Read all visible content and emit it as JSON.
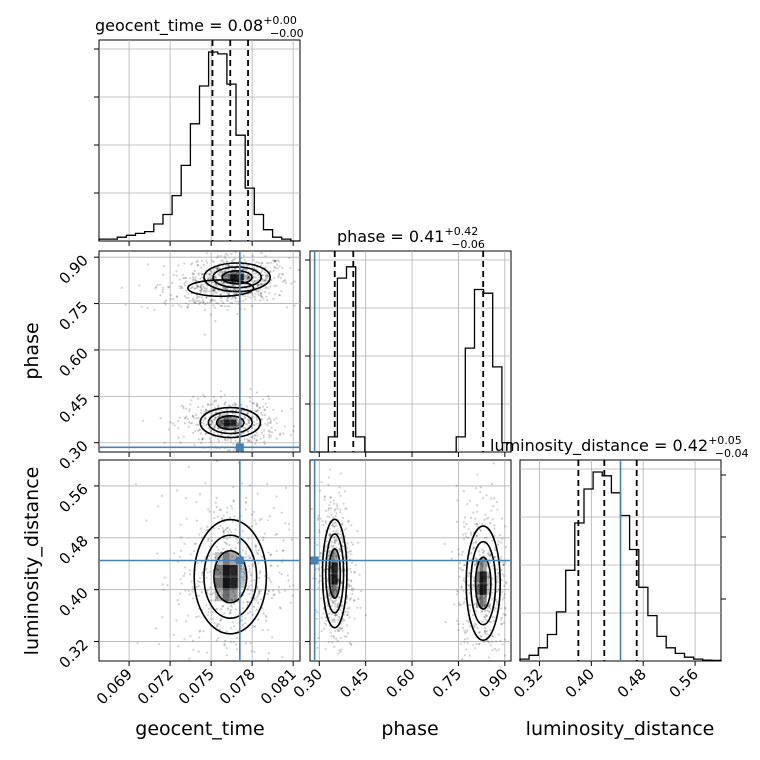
{
  "chart_data": {
    "type": "corner",
    "parameters": [
      "geocent_time",
      "phase",
      "luminosity_distance"
    ],
    "axis_labels": {
      "geocent_time": "geocent_time",
      "phase": "phase",
      "luminosity_distance": "luminosity_distance"
    },
    "ranges": {
      "geocent_time": [
        0.0668,
        0.0815
      ],
      "phase": [
        0.27,
        0.92
      ],
      "luminosity_distance": [
        0.29,
        0.6
      ]
    },
    "ticks": {
      "geocent_time": [
        "0.069",
        "0.072",
        "0.075",
        "0.078",
        "0.081"
      ],
      "phase": [
        "0.30",
        "0.45",
        "0.60",
        "0.75",
        "0.90"
      ],
      "luminosity_distance": [
        "0.32",
        "0.40",
        "0.48",
        "0.56"
      ]
    },
    "titles": {
      "geocent_time": {
        "prefix": "geocent_time = 0.08",
        "plus": "+0.00",
        "minus": "−0.00"
      },
      "phase": {
        "prefix": "phase = 0.41",
        "plus": "+0.42",
        "minus": "−0.06"
      },
      "luminosity_distance": {
        "prefix": "luminosity_distance = 0.42",
        "plus": "+0.05",
        "minus": "−0.04"
      }
    },
    "truths": {
      "geocent_time": 0.0771,
      "phase": 0.285,
      "luminosity_distance": 0.445
    },
    "quantiles": {
      "geocent_time": [
        0.0751,
        0.0764,
        0.0777
      ],
      "phase": [
        0.35,
        0.41,
        0.83
      ],
      "luminosity_distance": [
        0.38,
        0.42,
        0.47
      ]
    },
    "histograms": {
      "geocent_time": {
        "edges_start": 0.0668,
        "edges_end": 0.0815,
        "counts": [
          0.01,
          0.01,
          0.02,
          0.03,
          0.04,
          0.05,
          0.09,
          0.14,
          0.24,
          0.4,
          0.62,
          0.82,
          1.0,
          0.99,
          0.83,
          0.56,
          0.28,
          0.14,
          0.06,
          0.02,
          0.01,
          0.0
        ]
      },
      "phase": {
        "edges_start": 0.27,
        "edges_end": 0.92,
        "counts": [
          0.0,
          0.0,
          0.08,
          0.92,
          0.98,
          0.08,
          0.0,
          0.0,
          0.0,
          0.0,
          0.0,
          0.0,
          0.0,
          0.0,
          0.0,
          0.0,
          0.08,
          0.55,
          0.86,
          0.84,
          0.45,
          0.05
        ]
      },
      "luminosity_distance": {
        "edges_start": 0.29,
        "edges_end": 0.6,
        "counts": [
          0.01,
          0.03,
          0.07,
          0.14,
          0.26,
          0.48,
          0.73,
          0.91,
          1.0,
          0.98,
          0.89,
          0.77,
          0.59,
          0.39,
          0.24,
          0.13,
          0.07,
          0.04,
          0.02,
          0.01,
          0.005,
          0.003
        ]
      }
    },
    "blobs": {
      "geocent_time|phase": [
        {
          "cx": 0.0769,
          "cy": 0.835,
          "sx": 0.0011,
          "sy": 0.021,
          "w": 1.0
        },
        {
          "cx": 0.0757,
          "cy": 0.8,
          "sx": 0.0012,
          "sy": 0.022,
          "w": 0.35
        },
        {
          "cx": 0.0738,
          "cy": 0.775,
          "sx": 0.0012,
          "sy": 0.014,
          "w": 0.15
        },
        {
          "cx": 0.0764,
          "cy": 0.365,
          "sx": 0.001,
          "sy": 0.022,
          "w": 1.0
        }
      ],
      "geocent_time|luminosity_distance": [
        {
          "cx": 0.0764,
          "cy": 0.42,
          "sx": 0.0012,
          "sy": 0.04,
          "w": 1.0
        }
      ],
      "phase|luminosity_distance": [
        {
          "cx": 0.35,
          "cy": 0.425,
          "sx": 0.018,
          "sy": 0.038,
          "w": 1.0
        },
        {
          "cx": 0.83,
          "cy": 0.41,
          "sx": 0.025,
          "sy": 0.04,
          "w": 0.9
        }
      ]
    }
  }
}
